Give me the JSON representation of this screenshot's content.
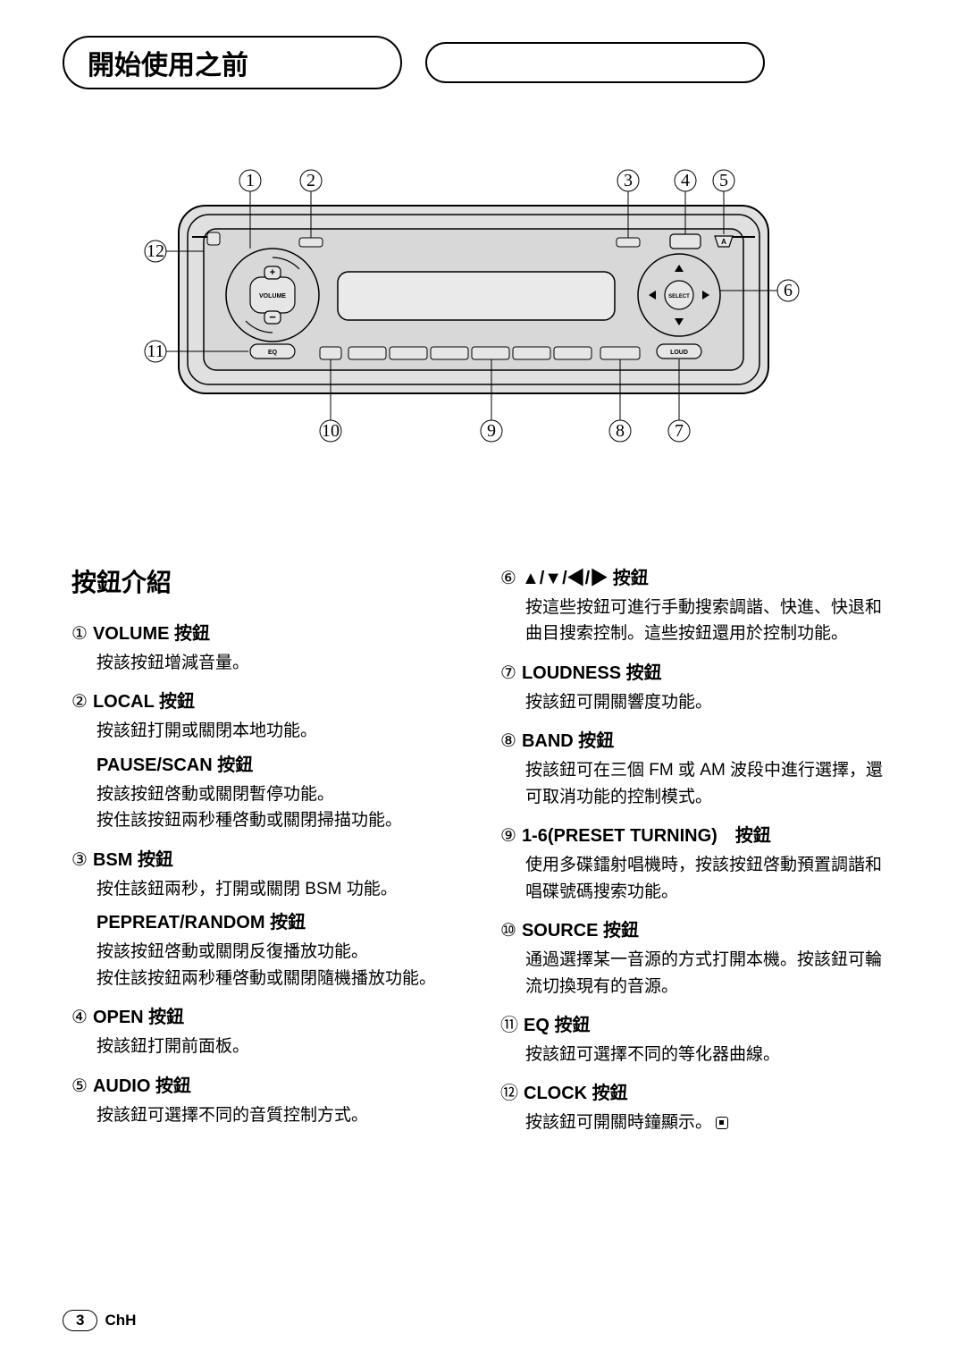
{
  "header": {
    "title": "開始使用之前"
  },
  "diagram": {
    "callouts": [
      "①",
      "②",
      "③",
      "④",
      "⑤",
      "⑥",
      "⑦",
      "⑧",
      "⑨",
      "⑩",
      "⑪",
      "⑫"
    ],
    "labels": {
      "volume": "VOLUME",
      "eq": "EQ",
      "select": "SELECT",
      "loud": "LOUD",
      "a": "A"
    },
    "stroke": "#000000",
    "fill_body": "#e0e0e0",
    "fill_inner": "#d5d5d5"
  },
  "sectionTitle": "按鈕介紹",
  "left": [
    {
      "n": "①",
      "t": "VOLUME 按鈕",
      "d": [
        "按該按鈕增減音量。"
      ]
    },
    {
      "n": "②",
      "t": "LOCAL 按鈕",
      "d": [
        "按該鈕打開或關閉本地功能。"
      ],
      "sub": [
        {
          "t": "PAUSE/SCAN 按鈕",
          "d": [
            "按該按鈕啓動或關閉暫停功能。",
            "按住該按鈕兩秒種啓動或關閉掃描功能。"
          ]
        }
      ]
    },
    {
      "n": "③",
      "t": "BSM 按鈕",
      "d": [
        "按住該鈕兩秒，打開或關閉 BSM 功能。"
      ],
      "sub": [
        {
          "t": "PEPREAT/RANDOM 按鈕",
          "d": [
            "按該按鈕啓動或關閉反復播放功能。",
            "按住該按鈕兩秒種啓動或關閉隨機播放功能。"
          ]
        }
      ]
    },
    {
      "n": "④",
      "t": "OPEN 按鈕",
      "d": [
        "按該鈕打開前面板。"
      ]
    },
    {
      "n": "⑤",
      "t": "AUDIO 按鈕",
      "d": [
        "按該鈕可選擇不同的音質控制方式。"
      ]
    }
  ],
  "right": [
    {
      "n": "⑥",
      "t": "▲/▼/◀/▶ 按鈕",
      "d": [
        "按這些按鈕可進行手動搜索調諧、快進、快退和曲目搜索控制。這些按鈕還用於控制功能。"
      ]
    },
    {
      "n": "⑦",
      "t": "LOUDNESS 按鈕",
      "d": [
        "按該鈕可開關響度功能。"
      ]
    },
    {
      "n": "⑧",
      "t": "BAND 按鈕",
      "d": [
        "按該鈕可在三個 FM 或 AM 波段中進行選擇，還可取消功能的控制模式。"
      ]
    },
    {
      "n": "⑨",
      "t": "1-6(PRESET TURNING)　按鈕",
      "d": [
        "使用多碟鐳射唱機時，按該按鈕啓動預置調諧和唱碟號碼搜索功能。"
      ]
    },
    {
      "n": "⑩",
      "t": "SOURCE 按鈕",
      "d": [
        "通過選擇某一音源的方式打開本機。按該鈕可輪流切換現有的音源。"
      ]
    },
    {
      "n": "⑪",
      "t": "EQ 按鈕",
      "d": [
        "按該鈕可選擇不同的等化器曲線。"
      ]
    },
    {
      "n": "⑫",
      "t": "CLOCK 按鈕",
      "d": [
        "按該鈕可開關時鐘顯示。"
      ],
      "end": true
    }
  ],
  "footer": {
    "page": "3",
    "lang": "ChH"
  }
}
